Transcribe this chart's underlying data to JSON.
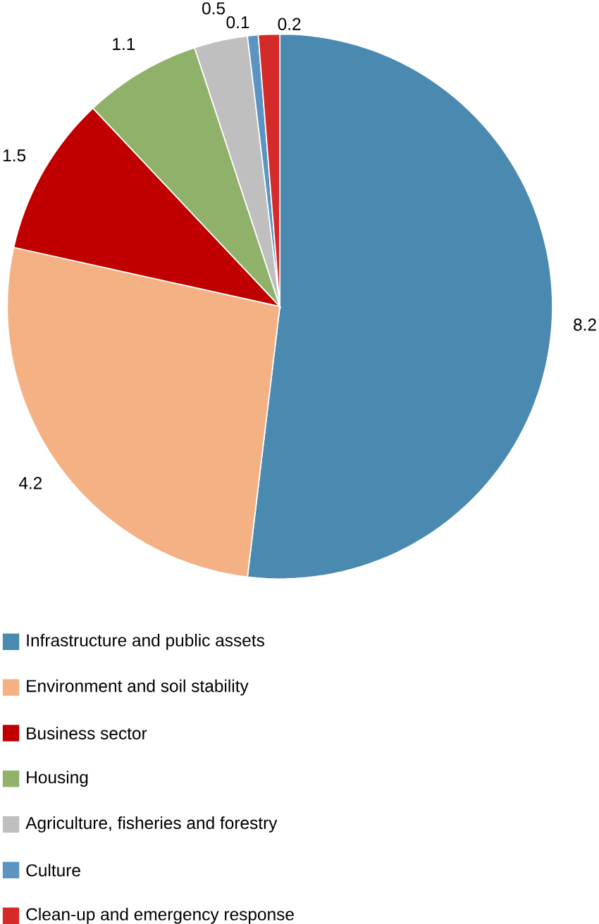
{
  "chart_data": {
    "type": "pie",
    "categories": [
      "Infrastructure and public assets",
      "Environment and soil stability",
      "Business sector",
      "Housing",
      "Agriculture, fisheries and forestry",
      "Culture",
      "Clean-up and emergency response"
    ],
    "values": [
      8.2,
      4.2,
      1.5,
      1.1,
      0.5,
      0.1,
      0.2
    ],
    "colors": [
      "#4a8ab0",
      "#f4b183",
      "#c00000",
      "#8fb16a",
      "#bfbfbf",
      "#5b94c0",
      "#d42a2a"
    ],
    "data_labels": true,
    "legend": "bottom"
  }
}
